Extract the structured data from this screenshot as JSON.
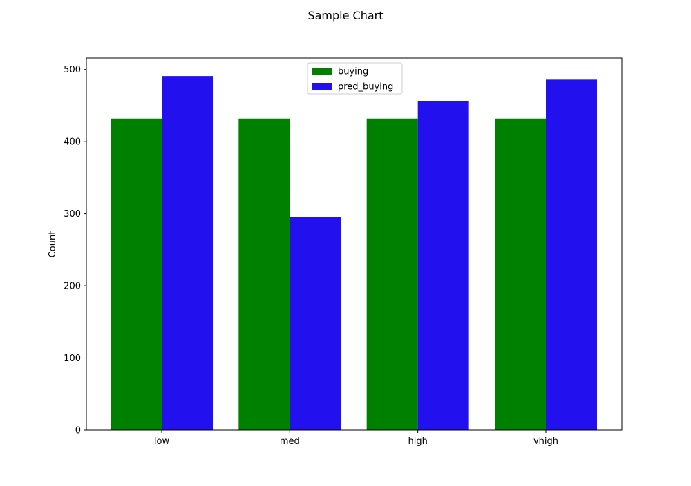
{
  "chart_data": {
    "type": "bar",
    "title": "Sample Chart",
    "xlabel": "",
    "ylabel": "Count",
    "categories": [
      "low",
      "med",
      "high",
      "vhigh"
    ],
    "series": [
      {
        "name": "buying",
        "values": [
          432,
          432,
          432,
          432
        ],
        "color": "#008000"
      },
      {
        "name": "pred_buying",
        "values": [
          491,
          295,
          456,
          486
        ],
        "color": "#2211EE"
      }
    ],
    "ylim": [
      0,
      516
    ],
    "yticks": [
      0,
      100,
      200,
      300,
      400,
      500
    ],
    "grid": false,
    "legend_position": "top-center"
  }
}
